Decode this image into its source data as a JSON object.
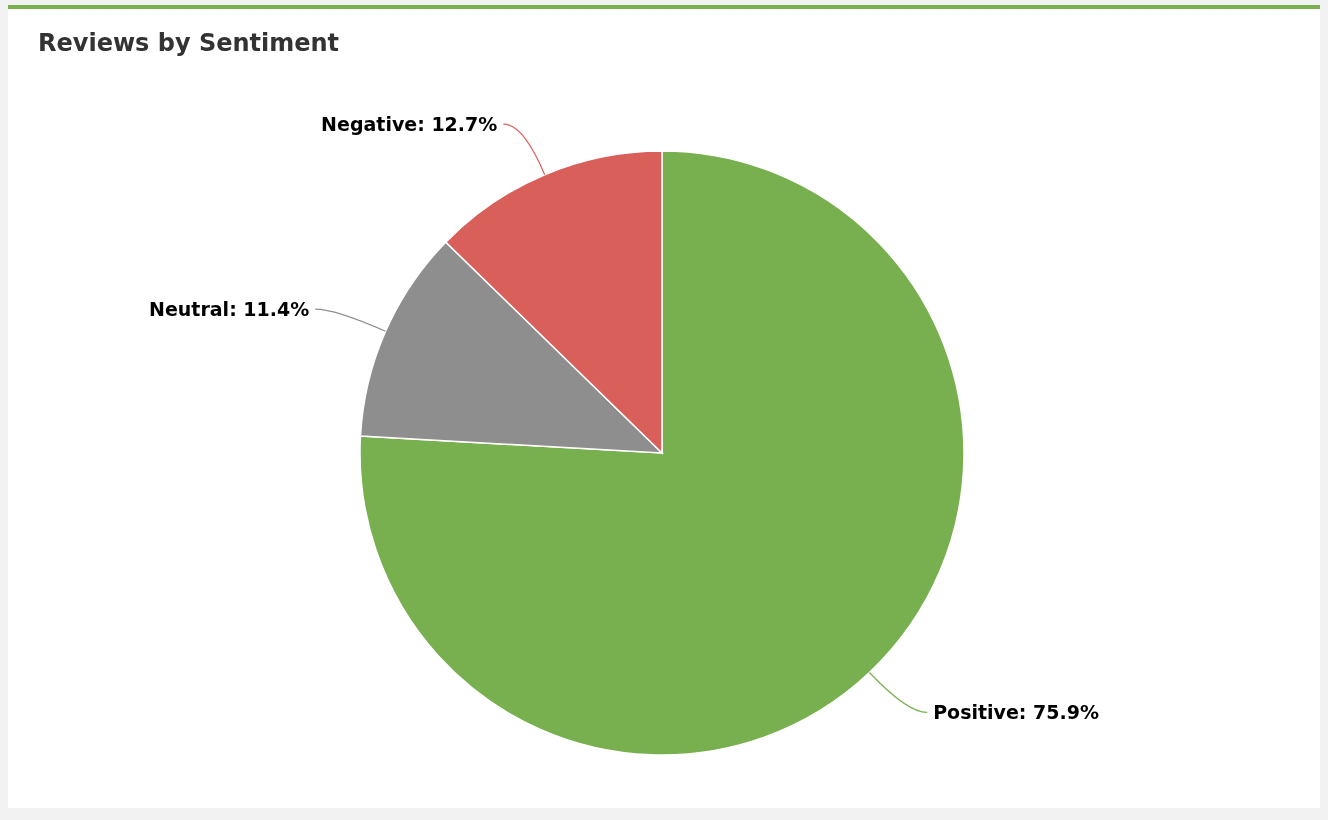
{
  "chart_data": {
    "type": "pie",
    "title": "Reviews by Sentiment",
    "categories": [
      "Positive",
      "Neutral",
      "Negative"
    ],
    "values": [
      75.9,
      11.4,
      12.7
    ],
    "colors": [
      "#78b04f",
      "#8e8e8e",
      "#d95f5a"
    ],
    "value_labels": [
      "75.9%",
      "11.4%",
      "12.7%"
    ]
  }
}
